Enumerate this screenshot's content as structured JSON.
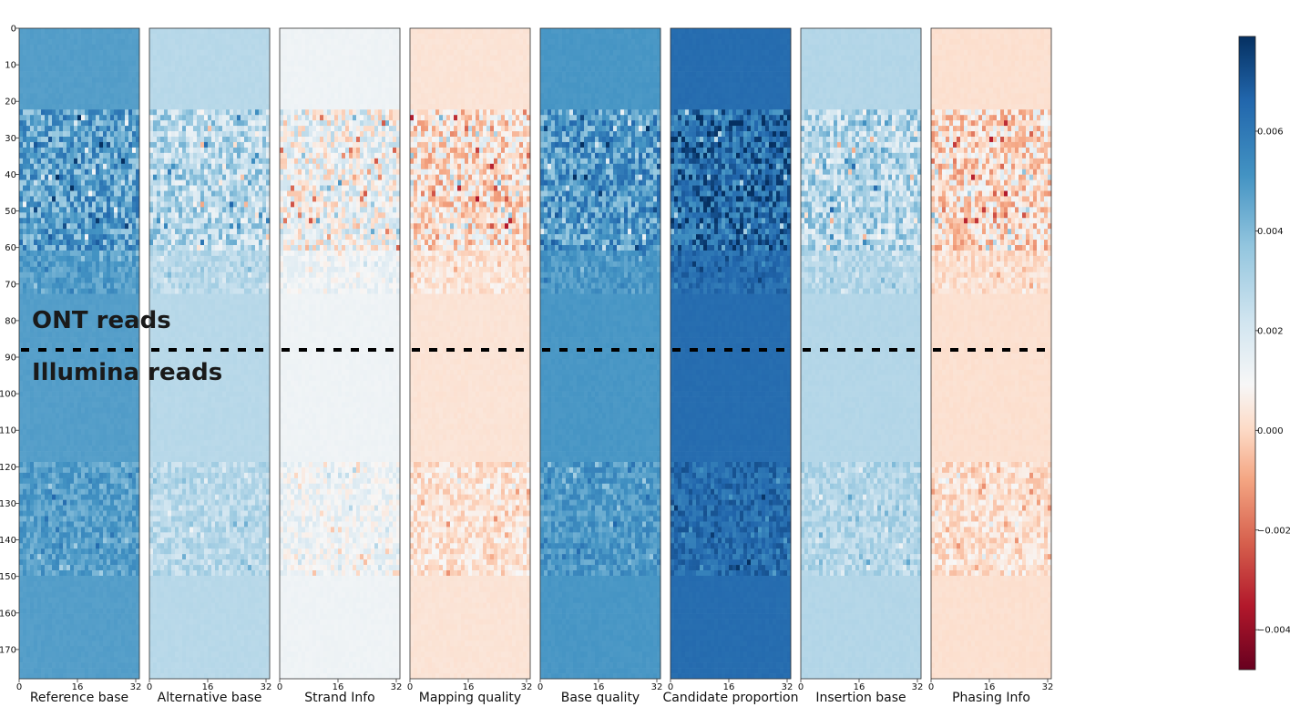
{
  "chart_data": {
    "type": "heatmap",
    "panels": [
      {
        "name": "Reference base",
        "base": 0.0048
      },
      {
        "name": "Alternative base",
        "base": 0.0028
      },
      {
        "name": "Strand Info",
        "base": 0.0012
      },
      {
        "name": "Mapping quality",
        "base": 0.0003
      },
      {
        "name": "Base quality",
        "base": 0.005
      },
      {
        "name": "Candidate proportion",
        "base": 0.0064
      },
      {
        "name": "Insertion base",
        "base": 0.0029
      },
      {
        "name": "Phasing Info",
        "base": 0.0002
      }
    ],
    "x_ticks": [
      0,
      16,
      32
    ],
    "y_ticks": [
      0,
      10,
      20,
      30,
      40,
      50,
      60,
      70,
      80,
      90,
      100,
      110,
      120,
      130,
      140,
      150,
      160,
      170
    ],
    "ylim": [
      0,
      178
    ],
    "xlim": [
      0,
      33
    ],
    "colorbar": {
      "colormap": "RdBu",
      "range": [
        -0.0048,
        0.0079
      ],
      "ticks": [
        0.006,
        0.004,
        0.002,
        0.0,
        -0.002,
        -0.004
      ],
      "tick_labels": [
        "0.006",
        "0.004",
        "0.002",
        "0.000",
        "−0.002",
        "−0.004"
      ]
    },
    "separator_row": 88,
    "annotations": {
      "upper": "ONT reads",
      "lower": "Illumina reads"
    }
  }
}
